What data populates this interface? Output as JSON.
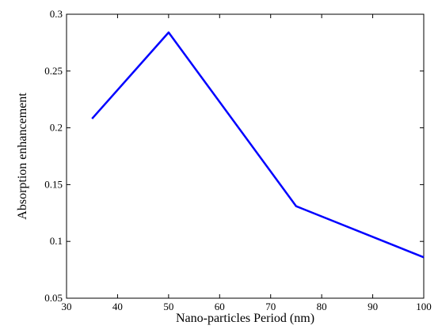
{
  "chart_data": {
    "type": "line",
    "title": "",
    "xlabel": "Nano-particles Period (nm)",
    "ylabel": "Absorption enhancement",
    "xlim": [
      30,
      100
    ],
    "ylim": [
      0.05,
      0.3
    ],
    "x_ticks": [
      30,
      40,
      50,
      60,
      70,
      80,
      90,
      100
    ],
    "x_tick_labels": [
      "30",
      "40",
      "50",
      "60",
      "70",
      "80",
      "90",
      "100"
    ],
    "y_ticks": [
      0.05,
      0.1,
      0.15,
      0.2,
      0.25,
      0.3
    ],
    "y_tick_labels": [
      "0.05",
      "0.1",
      "0.15",
      "0.2",
      "0.25",
      "0.3"
    ],
    "grid": false,
    "series": [
      {
        "color": "#0000ff",
        "x": [
          35,
          50,
          75,
          100
        ],
        "y": [
          0.208,
          0.284,
          0.131,
          0.086
        ]
      }
    ]
  }
}
